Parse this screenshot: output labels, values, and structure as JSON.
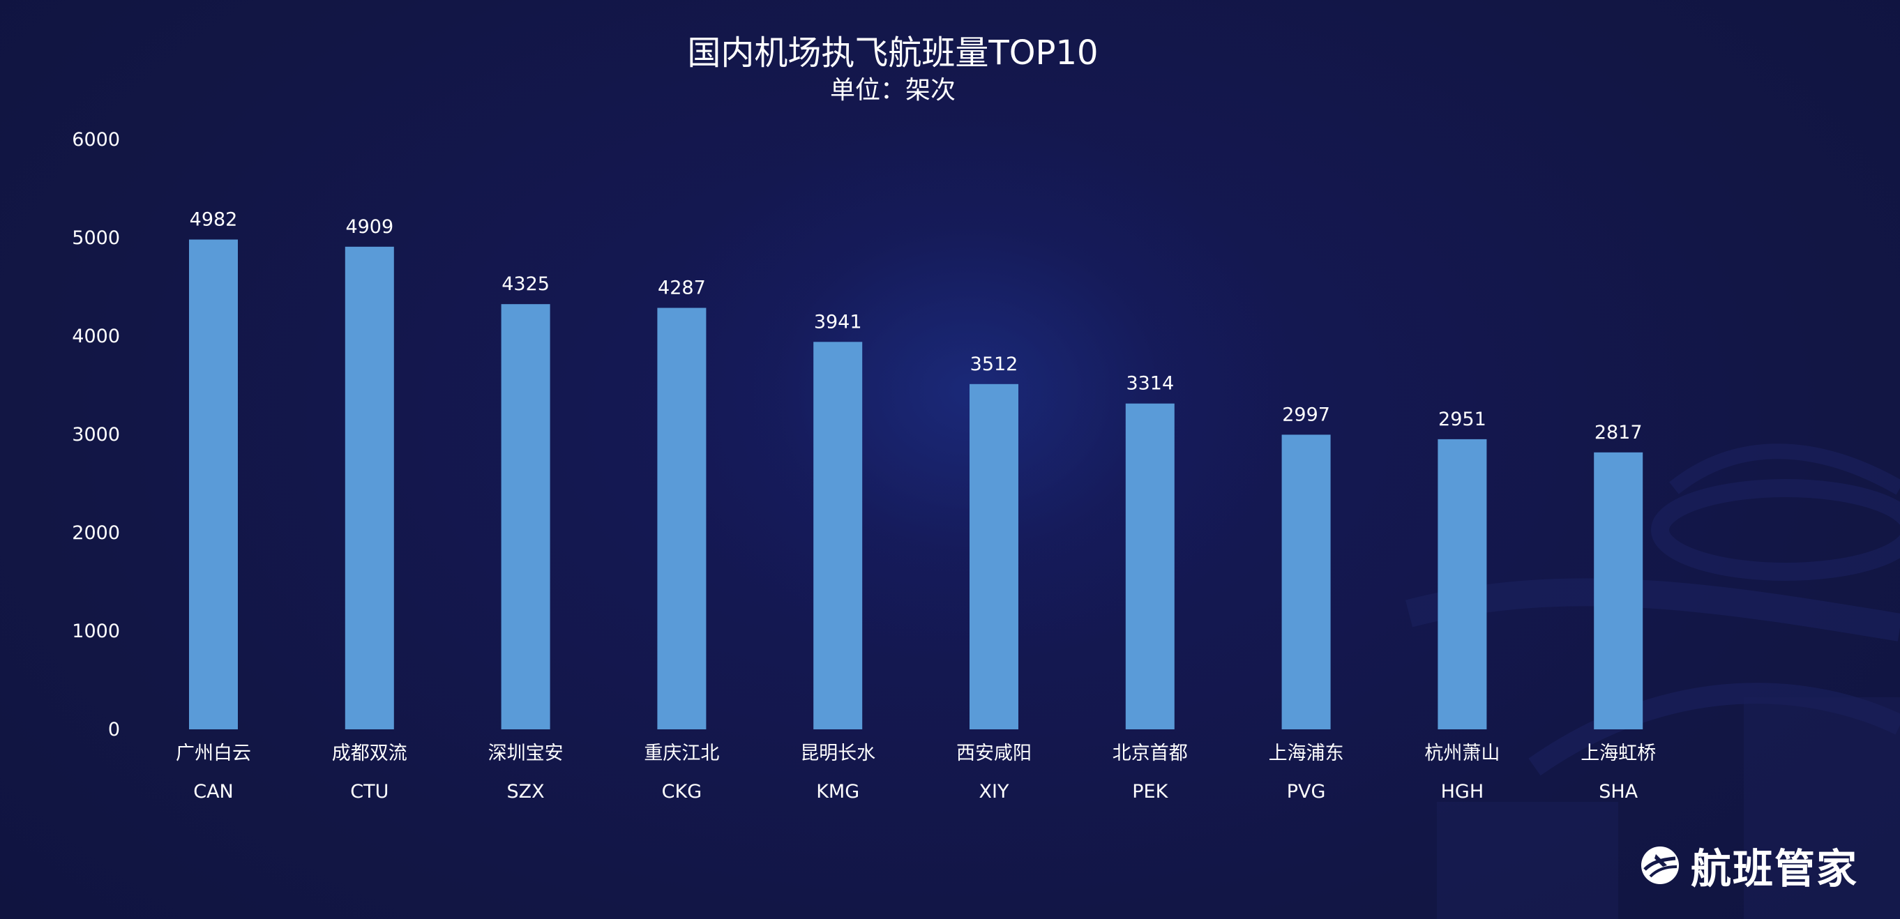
{
  "chart_data": {
    "type": "bar",
    "title": "国内机场执飞航班量TOP10",
    "subtitle": "单位：架次",
    "categories": [
      "广州白云",
      "成都双流",
      "深圳宝安",
      "重庆江北",
      "昆明长水",
      "西安咸阳",
      "北京首都",
      "上海浦东",
      "杭州萧山",
      "上海虹桥"
    ],
    "codes": [
      "CAN",
      "CTU",
      "SZX",
      "CKG",
      "KMG",
      "XIY",
      "PEK",
      "PVG",
      "HGH",
      "SHA"
    ],
    "values": [
      4982,
      4909,
      4325,
      4287,
      3941,
      3512,
      3314,
      2997,
      2951,
      2817
    ],
    "yticks": [
      0,
      1000,
      2000,
      3000,
      4000,
      5000,
      6000
    ],
    "ylim": [
      0,
      6000
    ],
    "grid": false,
    "data_labels": true,
    "bar_color": "#5a9bd8"
  },
  "colors": {
    "background": "#131848",
    "text": "#ffffff"
  },
  "logo": {
    "text": "航班管家",
    "icon": "airplane-globe-icon"
  }
}
